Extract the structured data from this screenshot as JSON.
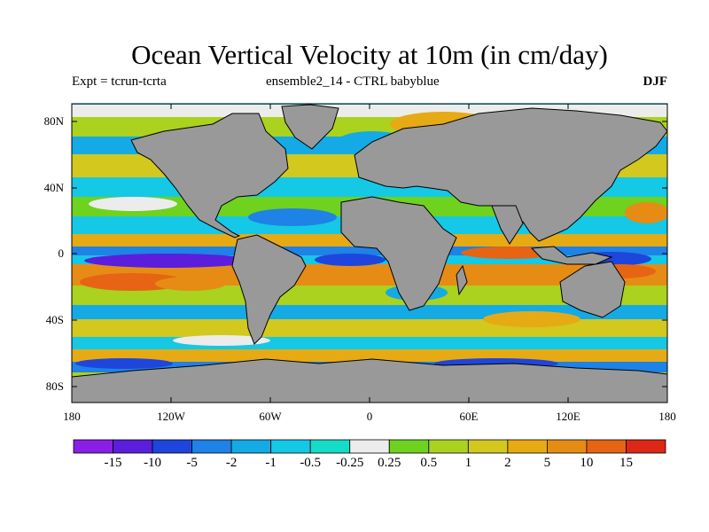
{
  "title": "Ocean Vertical Velocity at 10m (in cm/day)",
  "subtitle_left": "Expt = tcrun-tcrta",
  "subtitle_center": "ensemble2_14 - CTRL babyblue",
  "subtitle_right": "DJF",
  "lat_labels": [
    "80N",
    "40N",
    "0",
    "40S",
    "80S"
  ],
  "lon_labels": [
    "180",
    "120W",
    "60W",
    "0",
    "60E",
    "120E",
    "180"
  ],
  "colorbar": {
    "labels": [
      "-15",
      "-10",
      "-5",
      "-2",
      "-1",
      "-0.5",
      "-0.25",
      "0.25",
      "0.5",
      "1",
      "2",
      "5",
      "10",
      "15"
    ],
    "colors": [
      "#8a1ee6",
      "#5a1edc",
      "#1e46dc",
      "#1e82e6",
      "#14aae6",
      "#14c8e6",
      "#14dcc8",
      "#ececec",
      "#6ed21e",
      "#aad21e",
      "#d2c81e",
      "#e6aa14",
      "#e68c14",
      "#e66414",
      "#dc2814"
    ]
  },
  "land_color": "#999999"
}
